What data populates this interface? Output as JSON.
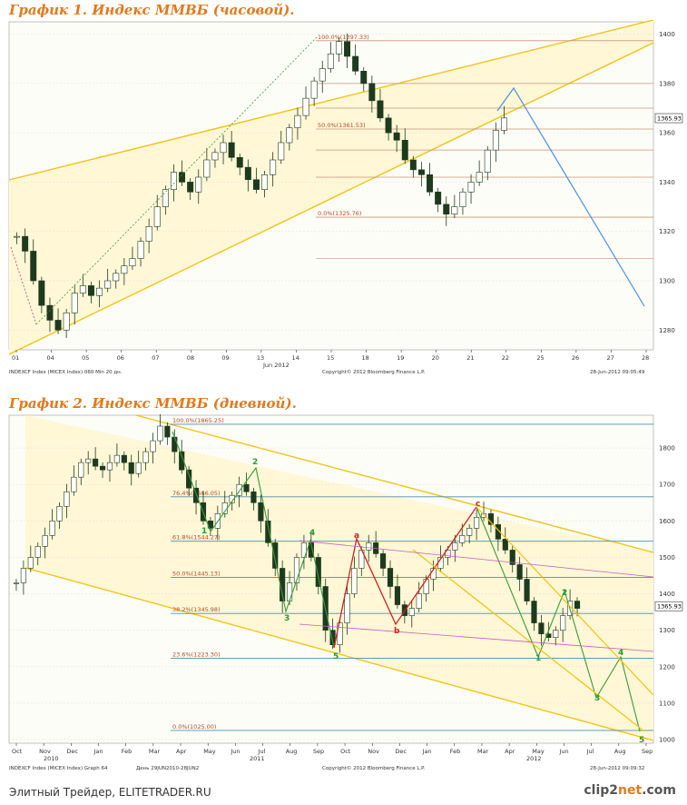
{
  "chart_data": [
    {
      "type": "candlestick",
      "title": "График 1.   Индекс ММВБ (часовой).",
      "xticks": [
        "01",
        "04",
        "05",
        "06",
        "07",
        "08",
        "09",
        "13",
        "14",
        "15",
        "18",
        "19",
        "20",
        "21",
        "22",
        "25",
        "26",
        "27",
        "28"
      ],
      "month_label": "Jun 2012",
      "ylim": [
        1272,
        1405
      ],
      "yticks": [
        1280,
        1300,
        1320,
        1340,
        1360,
        1380,
        1400
      ],
      "last_price": "1365.93",
      "fib_levels": [
        {
          "label": "100.0%(1397.33)",
          "value": 1397.33
        },
        {
          "label": "50.0%(1361.53)",
          "value": 1361.53
        },
        {
          "label": "0.0%(1325.76)",
          "value": 1325.76
        }
      ],
      "fib_extra_levels": [
        1380,
        1370,
        1353,
        1342,
        1309
      ],
      "close": [
        1318,
        1312,
        1300,
        1290,
        1284,
        1280,
        1287,
        1295,
        1298,
        1294,
        1297,
        1300,
        1303,
        1306,
        1309,
        1316,
        1322,
        1330,
        1337,
        1344,
        1340,
        1336,
        1342,
        1349,
        1352,
        1356,
        1350,
        1346,
        1341,
        1337,
        1343,
        1349,
        1356,
        1362,
        1367,
        1374,
        1381,
        1386,
        1392,
        1397,
        1391,
        1385,
        1380,
        1373,
        1366,
        1360,
        1357,
        1349,
        1345,
        1343,
        1336,
        1331,
        1327,
        1330,
        1336,
        1340,
        1344,
        1353,
        1361,
        1366
      ],
      "annotations_right": [
        "INDEXCF Index (MICEX Index) 060 Min 20 дн.",
        "Copyright© 2012 Bloomberg Finance L.P.",
        "28-Jun-2012 09:05:49"
      ]
    },
    {
      "type": "candlestick",
      "title": "График 2.   Индекс ММВБ (дневной).",
      "xticks": [
        "Oct",
        "Nov",
        "Dec",
        "Jan",
        "Feb",
        "Mar",
        "Apr",
        "May",
        "Jun",
        "Jul",
        "Aug",
        "Sep",
        "Oct",
        "Nov",
        "Dec",
        "Jan",
        "Feb",
        "Mar",
        "Apr",
        "May",
        "Jun",
        "Jul",
        "Aug",
        "Sep"
      ],
      "year_labels": [
        "2010",
        "2011",
        "2012"
      ],
      "ylim": [
        990,
        1890
      ],
      "yticks": [
        1000,
        1100,
        1200,
        1300,
        1400,
        1500,
        1600,
        1700,
        1800
      ],
      "last_price": "1365.93",
      "fib_levels": [
        {
          "label": "100.0%(1865.25)",
          "value": 1865.25
        },
        {
          "label": "76.4%(1666.05)",
          "value": 1666.05
        },
        {
          "label": "61.8%(1544.27)",
          "value": 1544.27
        },
        {
          "label": "50.0%(1445.13)",
          "value": 1445.13
        },
        {
          "label": "38.2%(1345.98)",
          "value": 1345.98
        },
        {
          "label": "23.6%(1223.30)",
          "value": 1223.3
        },
        {
          "label": "0.0%(1025.00)",
          "value": 1025.0
        }
      ],
      "wave_labels": [
        {
          "text": "1",
          "color": "#2a9a2a"
        },
        {
          "text": "2",
          "color": "#2a9a2a"
        },
        {
          "text": "3",
          "color": "#2a9a2a"
        },
        {
          "text": "4",
          "color": "#2a9a2a"
        },
        {
          "text": "5",
          "color": "#2a9a2a"
        },
        {
          "text": "a",
          "color": "#cc2222"
        },
        {
          "text": "b",
          "color": "#cc2222"
        },
        {
          "text": "c",
          "color": "#cc2222"
        },
        {
          "text": "1",
          "color": "#2a9a2a"
        },
        {
          "text": "2",
          "color": "#2a9a2a"
        },
        {
          "text": "3",
          "color": "#2a9a2a"
        },
        {
          "text": "4",
          "color": "#2a9a2a"
        },
        {
          "text": "5",
          "color": "#2a9a2a"
        }
      ],
      "close": [
        1430,
        1470,
        1500,
        1530,
        1560,
        1600,
        1640,
        1680,
        1720,
        1760,
        1770,
        1750,
        1740,
        1760,
        1780,
        1760,
        1730,
        1760,
        1790,
        1820,
        1860,
        1830,
        1790,
        1740,
        1690,
        1650,
        1600,
        1580,
        1620,
        1650,
        1670,
        1700,
        1680,
        1650,
        1600,
        1540,
        1470,
        1380,
        1430,
        1500,
        1540,
        1500,
        1420,
        1300,
        1260,
        1320,
        1400,
        1470,
        1520,
        1540,
        1510,
        1470,
        1420,
        1370,
        1340,
        1360,
        1400,
        1440,
        1470,
        1500,
        1520,
        1540,
        1560,
        1580,
        1610,
        1620,
        1590,
        1550,
        1520,
        1480,
        1440,
        1380,
        1320,
        1290,
        1280,
        1300,
        1340,
        1380,
        1360
      ],
      "annotations_right": [
        "INDEXCF Index (MICEX Index) Graph 64",
        "День 29JUN2010-28JUN2",
        "Copyright© 2012 Bloomberg Finance L.P.",
        "28-Jun-2012 09:09:32"
      ]
    }
  ],
  "watermark": "Элитный Трейдер, ELITETRADER.RU",
  "logo": {
    "main": "clip2",
    "accent": "net",
    "suffix": ".com"
  },
  "colors": {
    "channel_fill": "#fff7d6",
    "channel_line": "#f1c40f",
    "candle": "#1e3a1e",
    "fib_line": "#c8937a",
    "blue_line": "#4a90d9",
    "title": "#e07a1c"
  }
}
